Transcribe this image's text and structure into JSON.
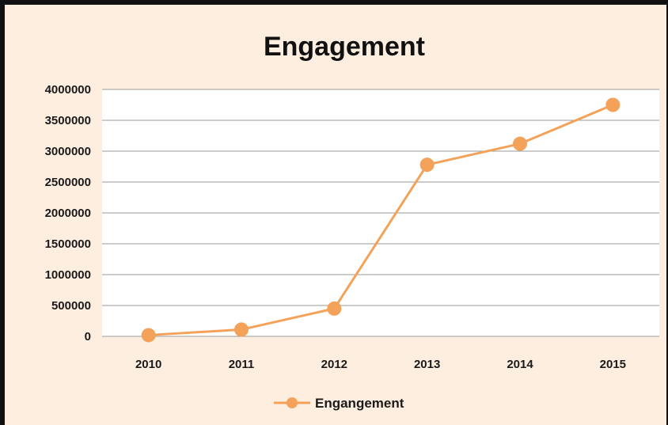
{
  "chart_data": {
    "type": "line",
    "title": "Engagement",
    "xlabel": "",
    "ylabel": "",
    "categories": [
      "2010",
      "2011",
      "2012",
      "2013",
      "2014",
      "2015"
    ],
    "series": [
      {
        "name": "Engangement",
        "values": [
          20000,
          110000,
          450000,
          2780000,
          3120000,
          3750000
        ],
        "color": "#f4a259"
      }
    ],
    "ylim": [
      0,
      4000000
    ],
    "yticks": [
      "0",
      "500000",
      "1000000",
      "1500000",
      "2000000",
      "2500000",
      "3000000",
      "3500000",
      "4000000"
    ],
    "grid": true,
    "legend": "bottom"
  },
  "colors": {
    "background": "#fdeee0",
    "plot_background": "#ffffff",
    "grid": "#9a9a9a",
    "line": "#f4a259"
  }
}
